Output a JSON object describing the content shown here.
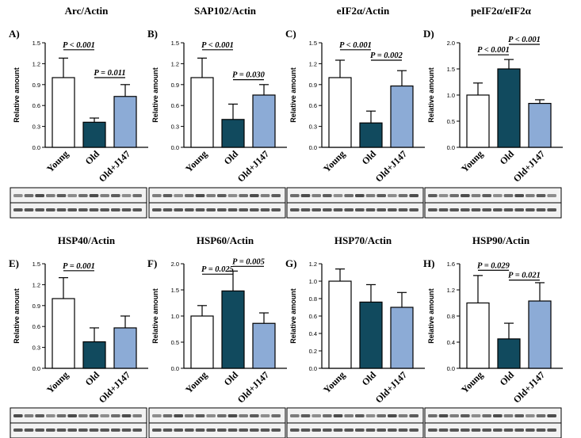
{
  "colors": {
    "young_fill": "#ffffff",
    "old_fill": "#114a5e",
    "treated_fill": "#8cabd6",
    "stroke": "#000000",
    "blot_background": "#f2f2f2",
    "blot_band": "#3b3b3b"
  },
  "chart_data": [
    {
      "type": "bar",
      "panel": "A)",
      "title": "Arc/Actin",
      "ylabel": "Relative amount",
      "categories": [
        "Young",
        "Old",
        "Old+J147"
      ],
      "values": [
        1.0,
        0.36,
        0.73
      ],
      "errors": [
        0.28,
        0.06,
        0.17
      ],
      "ylim": [
        0,
        1.5
      ],
      "yticks": [
        "0.0",
        "0.3",
        "0.6",
        "0.9",
        "1.2",
        "1.5"
      ],
      "annotations": [
        {
          "text": "P < 0.001",
          "from": 0,
          "to": 1,
          "level": 1.4
        },
        {
          "text": "P = 0.011",
          "from": 1,
          "to": 2,
          "level": 1.0
        }
      ]
    },
    {
      "type": "bar",
      "panel": "B)",
      "title": "SAP102/Actin",
      "ylabel": "Relative amount",
      "categories": [
        "Young",
        "Old",
        "Old+J147"
      ],
      "values": [
        1.0,
        0.4,
        0.75
      ],
      "errors": [
        0.28,
        0.22,
        0.15
      ],
      "ylim": [
        0,
        1.5
      ],
      "yticks": [
        "0.0",
        "0.3",
        "0.6",
        "0.9",
        "1.2",
        "1.5"
      ],
      "annotations": [
        {
          "text": "P < 0.001",
          "from": 0,
          "to": 1,
          "level": 1.4
        },
        {
          "text": "P = 0.030",
          "from": 1,
          "to": 2,
          "level": 0.97
        }
      ]
    },
    {
      "type": "bar",
      "panel": "C)",
      "title": "eIF2α/Actin",
      "ylabel": "Relative amount",
      "categories": [
        "Young",
        "Old",
        "Old+J147"
      ],
      "values": [
        1.0,
        0.35,
        0.88
      ],
      "errors": [
        0.25,
        0.17,
        0.22
      ],
      "ylim": [
        0,
        1.5
      ],
      "yticks": [
        "0.0",
        "0.3",
        "0.6",
        "0.9",
        "1.2",
        "1.5"
      ],
      "annotations": [
        {
          "text": "P < 0.001",
          "from": 0,
          "to": 1,
          "level": 1.4
        },
        {
          "text": "P = 0.002",
          "from": 1,
          "to": 2,
          "level": 1.25
        }
      ]
    },
    {
      "type": "bar",
      "panel": "D)",
      "title": "peIF2α/eIF2α",
      "ylabel": "Relative amount",
      "categories": [
        "Young",
        "Old",
        "Old+J147"
      ],
      "values": [
        1.0,
        1.5,
        0.84
      ],
      "errors": [
        0.23,
        0.18,
        0.07
      ],
      "ylim": [
        0,
        2.0
      ],
      "yticks": [
        "0.0",
        "0.5",
        "1.0",
        "1.5",
        "2.0"
      ],
      "annotations": [
        {
          "text": "P < 0.001",
          "from": 0,
          "to": 1,
          "level": 1.77
        },
        {
          "text": "P < 0.001",
          "from": 1,
          "to": 2,
          "level": 1.97
        }
      ]
    },
    {
      "type": "bar",
      "panel": "E)",
      "title": "HSP40/Actin",
      "ylabel": "Relative amount",
      "categories": [
        "Young",
        "Old",
        "Old+J147"
      ],
      "values": [
        1.0,
        0.38,
        0.58
      ],
      "errors": [
        0.3,
        0.2,
        0.17
      ],
      "ylim": [
        0,
        1.5
      ],
      "yticks": [
        "0.0",
        "0.3",
        "0.6",
        "0.9",
        "1.2",
        "1.5"
      ],
      "annotations": [
        {
          "text": "P = 0.001",
          "from": 0,
          "to": 1,
          "level": 1.4
        }
      ]
    },
    {
      "type": "bar",
      "panel": "F)",
      "title": "HSP60/Actin",
      "ylabel": "Relative amount",
      "categories": [
        "Young",
        "Old",
        "Old+J147"
      ],
      "values": [
        1.0,
        1.48,
        0.86
      ],
      "errors": [
        0.2,
        0.38,
        0.2
      ],
      "ylim": [
        0,
        2.0
      ],
      "yticks": [
        "0.0",
        "0.5",
        "1.0",
        "1.5",
        "2.0"
      ],
      "annotations": [
        {
          "text": "P = 0.025",
          "from": 0,
          "to": 1,
          "level": 1.8
        },
        {
          "text": "P = 0.005",
          "from": 1,
          "to": 2,
          "level": 1.95
        }
      ]
    },
    {
      "type": "bar",
      "panel": "G)",
      "title": "HSP70/Actin",
      "ylabel": "Relative amount",
      "categories": [
        "Young",
        "Old",
        "Old+J147"
      ],
      "values": [
        1.0,
        0.76,
        0.7
      ],
      "errors": [
        0.14,
        0.2,
        0.17
      ],
      "ylim": [
        0,
        1.2
      ],
      "yticks": [
        "0.0",
        "0.2",
        "0.4",
        "0.6",
        "0.8",
        "1.0",
        "1.2"
      ],
      "annotations": []
    },
    {
      "type": "bar",
      "panel": "H)",
      "title": "HSP90/Actin",
      "ylabel": "Relative amount",
      "categories": [
        "Young",
        "Old",
        "Old+J147"
      ],
      "values": [
        1.0,
        0.45,
        1.03
      ],
      "errors": [
        0.42,
        0.24,
        0.28
      ],
      "ylim": [
        0,
        1.6
      ],
      "yticks": [
        "0.0",
        "0.4",
        "0.8",
        "1.2",
        "1.6"
      ],
      "annotations": [
        {
          "text": "P = 0.029",
          "from": 0,
          "to": 1,
          "level": 1.5
        },
        {
          "text": "P = 0.021",
          "from": 1,
          "to": 2,
          "level": 1.35
        }
      ]
    }
  ]
}
